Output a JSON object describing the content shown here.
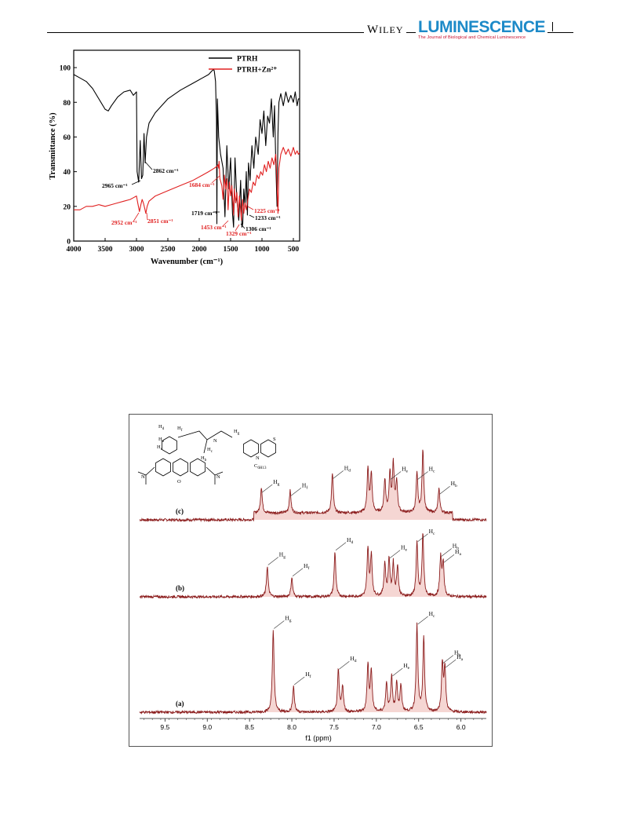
{
  "header": {
    "publisher_first": "W",
    "publisher_rest": "ILEY",
    "journal": "LUMINESCENCE",
    "journal_subtitle": "The Journal of Biological and Chemical Luminescence"
  },
  "chart_data": [
    {
      "type": "line",
      "xlabel": "Wavenumber (cm⁻¹)",
      "ylabel": "Transmittance (%)",
      "xlim": [
        4000,
        400
      ],
      "ylim": [
        0,
        110
      ],
      "x_ticks": [
        4000,
        3500,
        3000,
        2500,
        2000,
        1500,
        1000,
        500
      ],
      "y_ticks": [
        0,
        20,
        40,
        60,
        80,
        100
      ],
      "legend": {
        "placement": "top-right",
        "entries": [
          "PTRH",
          "PTRH+Zn²⁺"
        ]
      },
      "series": [
        {
          "name": "PTRH",
          "color": "#000000",
          "x": [
            4000,
            3900,
            3800,
            3700,
            3600,
            3500,
            3450,
            3400,
            3300,
            3200,
            3100,
            3050,
            3000,
            2990,
            2965,
            2940,
            2920,
            2900,
            2880,
            2862,
            2840,
            2800,
            2700,
            2500,
            2300,
            2100,
            1950,
            1850,
            1800,
            1770,
            1760,
            1740,
            1725,
            1719,
            1710,
            1690,
            1660,
            1620,
            1590,
            1560,
            1530,
            1500,
            1470,
            1453,
            1430,
            1400,
            1370,
            1340,
            1320,
            1306,
            1290,
            1270,
            1250,
            1233,
            1215,
            1190,
            1160,
            1130,
            1100,
            1060,
            1030,
            1000,
            970,
            940,
            910,
            880,
            850,
            820,
            800,
            780,
            760,
            745,
            730,
            700,
            660,
            620,
            580,
            540,
            500,
            470,
            440,
            420,
            400
          ],
          "y": [
            96,
            94,
            92,
            88,
            82,
            76,
            75,
            78,
            83,
            86,
            87,
            84,
            86,
            40,
            34,
            58,
            36,
            38,
            62,
            45,
            60,
            68,
            74,
            82,
            87,
            91,
            94,
            96,
            98,
            99,
            98,
            92,
            70,
            10,
            82,
            60,
            50,
            42,
            14,
            55,
            30,
            48,
            16,
            8,
            48,
            24,
            12,
            35,
            8,
            10,
            30,
            20,
            40,
            15,
            45,
            35,
            55,
            42,
            60,
            50,
            70,
            62,
            75,
            55,
            72,
            68,
            82,
            60,
            78,
            45,
            20,
            62,
            80,
            85,
            78,
            86,
            80,
            84,
            80,
            86,
            78,
            82,
            82
          ]
        },
        {
          "name": "PTRH+Zn²⁺",
          "color": "#e02020",
          "x": [
            4000,
            3900,
            3800,
            3700,
            3600,
            3500,
            3400,
            3300,
            3200,
            3100,
            3050,
            3000,
            2980,
            2952,
            2930,
            2910,
            2890,
            2870,
            2851,
            2830,
            2800,
            2700,
            2500,
            2300,
            2100,
            1950,
            1850,
            1760,
            1720,
            1700,
            1690,
            1684,
            1670,
            1640,
            1620,
            1600,
            1580,
            1560,
            1540,
            1520,
            1500,
            1480,
            1460,
            1453,
            1440,
            1420,
            1400,
            1380,
            1360,
            1340,
            1329,
            1310,
            1290,
            1270,
            1250,
            1225,
            1200,
            1170,
            1140,
            1110,
            1080,
            1050,
            1020,
            990,
            960,
            930,
            900,
            870,
            840,
            810,
            780,
            760,
            745,
            730,
            700,
            660,
            620,
            580,
            540,
            500,
            470,
            440,
            420,
            400
          ],
          "y": [
            18,
            18,
            20,
            20,
            21,
            20,
            21,
            22,
            23,
            24,
            25,
            26,
            22,
            17,
            21,
            24,
            22,
            19,
            16,
            20,
            23,
            26,
            29,
            32,
            35,
            38,
            40,
            42,
            43,
            44,
            42,
            46,
            36,
            32,
            24,
            38,
            30,
            36,
            18,
            34,
            26,
            32,
            20,
            15,
            30,
            22,
            28,
            14,
            26,
            18,
            12,
            24,
            16,
            22,
            18,
            24,
            30,
            28,
            34,
            32,
            38,
            36,
            40,
            38,
            44,
            40,
            46,
            42,
            48,
            44,
            50,
            32,
            16,
            42,
            50,
            54,
            50,
            53,
            49,
            54,
            50,
            52,
            50,
            51
          ]
        }
      ],
      "annotations": [
        {
          "text": "2965 cm⁻¹",
          "series": "PTRH"
        },
        {
          "text": "2862 cm⁻¹",
          "series": "PTRH"
        },
        {
          "text": "1719 cm⁻¹",
          "series": "PTRH"
        },
        {
          "text": "1233 cm⁻¹",
          "series": "PTRH"
        },
        {
          "text": "1306 cm⁻¹",
          "series": "PTRH"
        },
        {
          "text": "1684 cm⁻¹",
          "series": "PTRH+Zn²⁺"
        },
        {
          "text": "2952 cm⁻¹",
          "series": "PTRH+Zn²⁺"
        },
        {
          "text": "2851 cm⁻¹",
          "series": "PTRH+Zn²⁺"
        },
        {
          "text": "1225 cm⁻¹",
          "series": "PTRH+Zn²⁺"
        },
        {
          "text": "1453 cm⁻¹",
          "series": "PTRH+Zn²⁺"
        },
        {
          "text": "1329 cm⁻¹",
          "series": "PTRH+Zn²⁺"
        }
      ]
    },
    {
      "type": "line",
      "xlabel": "f1 (ppm)",
      "ylabel": "",
      "xlim": [
        9.8,
        5.7
      ],
      "x_ticks": [
        "9.5",
        "9.0",
        "8.5",
        "8.0",
        "7.5",
        "7.0",
        "6.5",
        "6.0"
      ],
      "grid": false,
      "line_color": "#8b1c1c",
      "fill_color": "#e8a59e",
      "spectra": [
        {
          "label": "(c)",
          "peaks": [
            {
              "ppm": 8.36,
              "height": 0.3,
              "label": "Hg"
            },
            {
              "ppm": 8.02,
              "height": 0.26,
              "label": "Hf"
            },
            {
              "ppm": 7.52,
              "height": 0.46,
              "label": "Hd"
            },
            {
              "ppm": 7.1,
              "height": 0.5
            },
            {
              "ppm": 7.06,
              "height": 0.45
            },
            {
              "ppm": 6.9,
              "height": 0.38
            },
            {
              "ppm": 6.84,
              "height": 0.45,
              "label": "He"
            },
            {
              "ppm": 6.8,
              "height": 0.55
            },
            {
              "ppm": 6.76,
              "height": 0.35
            },
            {
              "ppm": 6.52,
              "height": 0.45,
              "label": "Hc"
            },
            {
              "ppm": 6.45,
              "height": 0.72
            },
            {
              "ppm": 6.26,
              "height": 0.28,
              "label": "Hb"
            }
          ]
        },
        {
          "label": "(b)",
          "peaks": [
            {
              "ppm": 8.29,
              "height": 0.35,
              "label": "Hg"
            },
            {
              "ppm": 8.0,
              "height": 0.22,
              "label": "Hf"
            },
            {
              "ppm": 7.49,
              "height": 0.52,
              "label": "Hd"
            },
            {
              "ppm": 7.1,
              "height": 0.55
            },
            {
              "ppm": 7.06,
              "height": 0.48
            },
            {
              "ppm": 6.9,
              "height": 0.38
            },
            {
              "ppm": 6.85,
              "height": 0.43,
              "label": "He"
            },
            {
              "ppm": 6.8,
              "height": 0.38
            },
            {
              "ppm": 6.75,
              "height": 0.35
            },
            {
              "ppm": 6.52,
              "height": 0.62,
              "label": "Hc"
            },
            {
              "ppm": 6.45,
              "height": 0.72
            },
            {
              "ppm": 6.24,
              "height": 0.45,
              "label": "Hb"
            },
            {
              "ppm": 6.21,
              "height": 0.38,
              "label": "Ha"
            }
          ]
        },
        {
          "label": "(a)",
          "peaks": [
            {
              "ppm": 8.22,
              "height": 0.95,
              "label": "Hg"
            },
            {
              "ppm": 7.98,
              "height": 0.3,
              "label": "Hf"
            },
            {
              "ppm": 7.45,
              "height": 0.48,
              "label": "Hd"
            },
            {
              "ppm": 7.4,
              "height": 0.3
            },
            {
              "ppm": 7.1,
              "height": 0.55
            },
            {
              "ppm": 7.06,
              "height": 0.48
            },
            {
              "ppm": 6.88,
              "height": 0.34
            },
            {
              "ppm": 6.82,
              "height": 0.4,
              "label": "He"
            },
            {
              "ppm": 6.76,
              "height": 0.34
            },
            {
              "ppm": 6.71,
              "height": 0.3
            },
            {
              "ppm": 6.52,
              "height": 1.0,
              "label": "Hc"
            },
            {
              "ppm": 6.44,
              "height": 0.85
            },
            {
              "ppm": 6.22,
              "height": 0.55,
              "label": "Hb"
            },
            {
              "ppm": 6.19,
              "height": 0.5,
              "label": "Ha"
            }
          ]
        }
      ],
      "structure_labels": [
        "Ha",
        "Hb",
        "Hc",
        "Hd",
        "He",
        "Hf",
        "Hg",
        "O",
        "N",
        "C6H13"
      ]
    }
  ]
}
